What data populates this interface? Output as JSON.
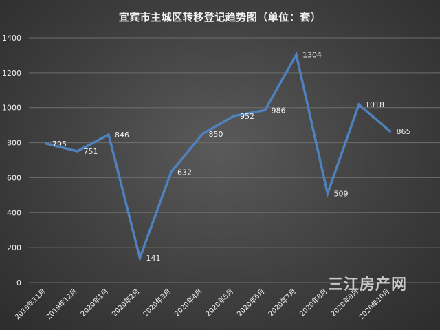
{
  "chart_data": {
    "type": "line",
    "title": "宜宾市主城区转移登记趋势图（单位：套）",
    "categories": [
      "2019年11月",
      "2019年12月",
      "2020年1月",
      "2020年2月",
      "2020年3月",
      "2020年4月",
      "2020年5月",
      "2020年6月",
      "2020年7月",
      "2020年8月",
      "2020年9月",
      "2020年10月"
    ],
    "series": [
      {
        "values": [
          795,
          751,
          846,
          141,
          632,
          850,
          952,
          986,
          1304,
          509,
          1018,
          865
        ]
      }
    ],
    "ylim": [
      0,
      1400
    ],
    "yticks": [
      0,
      200,
      400,
      600,
      800,
      1000,
      1200,
      1400
    ],
    "grid": true,
    "line_color": "#4f81bd",
    "text_color": "#f0f0f0"
  },
  "watermark": "三江房产网"
}
